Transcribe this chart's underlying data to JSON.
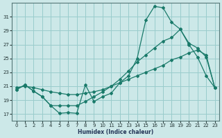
{
  "xlabel": "Humidex (Indice chaleur)",
  "background_color": "#cce8e8",
  "grid_color": "#99cccc",
  "line_color": "#1a7a6a",
  "xlim": [
    -0.5,
    23.5
  ],
  "ylim": [
    16.0,
    33.0
  ],
  "yticks": [
    17,
    19,
    21,
    23,
    25,
    27,
    29,
    31
  ],
  "xticks": [
    0,
    1,
    2,
    3,
    4,
    5,
    6,
    7,
    8,
    9,
    10,
    11,
    12,
    13,
    14,
    15,
    16,
    17,
    18,
    19,
    20,
    21,
    22,
    23
  ],
  "s1_x": [
    0,
    1,
    2,
    3,
    4,
    5,
    6,
    7,
    8,
    9,
    10,
    11,
    12,
    13,
    14,
    15,
    16,
    17,
    18,
    19,
    20,
    21,
    22,
    23
  ],
  "s1_y": [
    20.5,
    21.2,
    20.3,
    19.5,
    18.2,
    17.1,
    17.2,
    17.1,
    21.2,
    18.8,
    19.5,
    20.0,
    21.5,
    22.5,
    25.0,
    30.5,
    32.5,
    32.3,
    30.2,
    29.2,
    27.0,
    25.2,
    22.5,
    20.8
  ],
  "s2_x": [
    0,
    1,
    2,
    3,
    4,
    5,
    6,
    7,
    8,
    9,
    10,
    11,
    12,
    13,
    14,
    15,
    16,
    17,
    18,
    19,
    20,
    21,
    22,
    23
  ],
  "s2_y": [
    20.8,
    21.0,
    20.8,
    20.5,
    20.2,
    20.0,
    19.8,
    19.8,
    20.0,
    20.2,
    20.5,
    21.0,
    21.5,
    22.0,
    22.5,
    23.0,
    23.5,
    24.0,
    24.8,
    25.2,
    25.8,
    26.2,
    25.5,
    20.8
  ],
  "s3_x": [
    0,
    1,
    2,
    3,
    4,
    5,
    6,
    7,
    8,
    9,
    10,
    11,
    12,
    13,
    14,
    15,
    16,
    17,
    18,
    19,
    20,
    21,
    22,
    23
  ],
  "s3_y": [
    20.5,
    21.2,
    20.3,
    19.5,
    18.2,
    18.2,
    18.2,
    18.2,
    18.8,
    19.5,
    20.2,
    21.0,
    22.0,
    23.2,
    24.5,
    25.5,
    26.5,
    27.5,
    28.0,
    29.2,
    27.2,
    26.5,
    25.2,
    20.8
  ]
}
